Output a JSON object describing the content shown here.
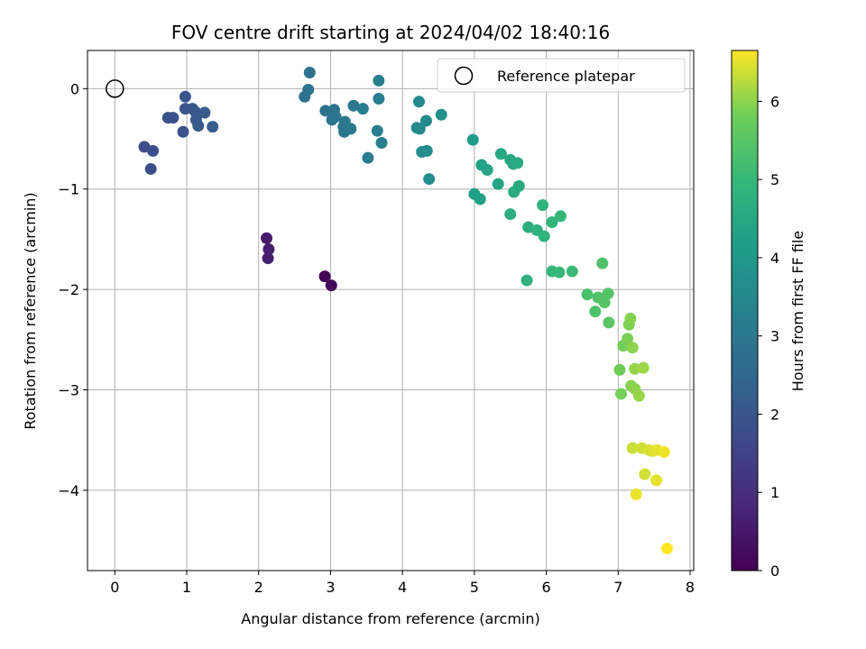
{
  "chart_data": {
    "type": "scatter",
    "title": "FOV centre drift starting at 2024/04/02 18:40:16",
    "xlabel": "Angular distance from reference (arcmin)",
    "ylabel": "Rotation from reference (arcmin)",
    "xlim": [
      -0.38,
      8.05
    ],
    "ylim": [
      -4.8,
      0.38
    ],
    "xticks": [
      0,
      1,
      2,
      3,
      4,
      5,
      6,
      7,
      8
    ],
    "yticks": [
      0,
      -1,
      -2,
      -3,
      -4
    ],
    "xtick_labels": [
      "0",
      "1",
      "2",
      "3",
      "4",
      "5",
      "6",
      "7",
      "8"
    ],
    "ytick_labels": [
      "0",
      "−1",
      "−2",
      "−3",
      "−4"
    ],
    "grid": true,
    "colormap": "viridis",
    "colorbar": {
      "label": "Hours from first FF file",
      "range": [
        0,
        6.65
      ],
      "ticks": [
        0,
        1,
        2,
        3,
        4,
        5,
        6
      ],
      "tick_labels": [
        "0",
        "1",
        "2",
        "3",
        "4",
        "5",
        "6"
      ]
    },
    "legend": {
      "position": "top-right",
      "entries": [
        "Reference platepar"
      ]
    },
    "reference_point": {
      "x": 0,
      "y": 0
    },
    "series": [
      {
        "name": "FOV centre",
        "points": [
          {
            "x": 2.92,
            "y": -1.87,
            "c": 0.1
          },
          {
            "x": 3.01,
            "y": -1.96,
            "c": 0.15
          },
          {
            "x": 2.11,
            "y": -1.49,
            "c": 0.55
          },
          {
            "x": 2.14,
            "y": -1.6,
            "c": 0.6
          },
          {
            "x": 2.13,
            "y": -1.69,
            "c": 0.65
          },
          {
            "x": 0.41,
            "y": -0.58,
            "c": 1.75
          },
          {
            "x": 0.5,
            "y": -0.8,
            "c": 1.8
          },
          {
            "x": 0.53,
            "y": -0.62,
            "c": 1.85
          },
          {
            "x": 0.74,
            "y": -0.29,
            "c": 1.9
          },
          {
            "x": 0.81,
            "y": -0.29,
            "c": 1.9
          },
          {
            "x": 0.95,
            "y": -0.43,
            "c": 1.95
          },
          {
            "x": 0.98,
            "y": -0.08,
            "c": 2.0
          },
          {
            "x": 0.98,
            "y": -0.2,
            "c": 2.0
          },
          {
            "x": 1.08,
            "y": -0.2,
            "c": 2.05
          },
          {
            "x": 1.12,
            "y": -0.23,
            "c": 2.05
          },
          {
            "x": 1.13,
            "y": -0.31,
            "c": 2.1
          },
          {
            "x": 1.16,
            "y": -0.37,
            "c": 2.1
          },
          {
            "x": 1.25,
            "y": -0.24,
            "c": 2.15
          },
          {
            "x": 1.36,
            "y": -0.38,
            "c": 2.2
          },
          {
            "x": 2.71,
            "y": 0.16,
            "c": 2.75
          },
          {
            "x": 2.69,
            "y": -0.01,
            "c": 2.8
          },
          {
            "x": 2.64,
            "y": -0.08,
            "c": 2.8
          },
          {
            "x": 2.93,
            "y": -0.22,
            "c": 2.85
          },
          {
            "x": 3.02,
            "y": -0.31,
            "c": 2.9
          },
          {
            "x": 3.05,
            "y": -0.21,
            "c": 2.9
          },
          {
            "x": 3.07,
            "y": -0.28,
            "c": 2.95
          },
          {
            "x": 3.18,
            "y": -0.38,
            "c": 2.95
          },
          {
            "x": 3.2,
            "y": -0.33,
            "c": 3.0
          },
          {
            "x": 3.19,
            "y": -0.43,
            "c": 3.0
          },
          {
            "x": 3.28,
            "y": -0.4,
            "c": 3.05
          },
          {
            "x": 3.32,
            "y": -0.17,
            "c": 3.05
          },
          {
            "x": 3.45,
            "y": -0.2,
            "c": 3.1
          },
          {
            "x": 3.52,
            "y": -0.69,
            "c": 3.1
          },
          {
            "x": 3.65,
            "y": -0.42,
            "c": 3.15
          },
          {
            "x": 3.67,
            "y": -0.1,
            "c": 3.2
          },
          {
            "x": 3.67,
            "y": 0.08,
            "c": 3.2
          },
          {
            "x": 3.71,
            "y": -0.54,
            "c": 3.25
          },
          {
            "x": 4.2,
            "y": -0.39,
            "c": 3.5
          },
          {
            "x": 4.23,
            "y": -0.13,
            "c": 3.55
          },
          {
            "x": 4.24,
            "y": -0.4,
            "c": 3.55
          },
          {
            "x": 4.27,
            "y": -0.63,
            "c": 3.6
          },
          {
            "x": 4.33,
            "y": -0.32,
            "c": 3.6
          },
          {
            "x": 4.34,
            "y": -0.62,
            "c": 3.65
          },
          {
            "x": 4.37,
            "y": -0.9,
            "c": 3.7
          },
          {
            "x": 4.54,
            "y": -0.26,
            "c": 3.75
          },
          {
            "x": 4.98,
            "y": -0.51,
            "c": 4.1
          },
          {
            "x": 5.0,
            "y": -1.05,
            "c": 4.2
          },
          {
            "x": 5.08,
            "y": -1.1,
            "c": 4.25
          },
          {
            "x": 5.1,
            "y": -0.76,
            "c": 4.3
          },
          {
            "x": 5.18,
            "y": -0.81,
            "c": 4.35
          },
          {
            "x": 5.33,
            "y": -0.95,
            "c": 4.4
          },
          {
            "x": 5.37,
            "y": -0.65,
            "c": 4.45
          },
          {
            "x": 5.5,
            "y": -0.71,
            "c": 4.5
          },
          {
            "x": 5.54,
            "y": -0.75,
            "c": 4.5
          },
          {
            "x": 5.6,
            "y": -0.74,
            "c": 4.55
          },
          {
            "x": 5.62,
            "y": -0.97,
            "c": 4.55
          },
          {
            "x": 5.55,
            "y": -1.03,
            "c": 4.6
          },
          {
            "x": 5.5,
            "y": -1.25,
            "c": 4.65
          },
          {
            "x": 5.75,
            "y": -1.38,
            "c": 4.7
          },
          {
            "x": 5.73,
            "y": -1.91,
            "c": 4.75
          },
          {
            "x": 5.87,
            "y": -1.41,
            "c": 4.8
          },
          {
            "x": 5.95,
            "y": -1.16,
            "c": 4.85
          },
          {
            "x": 5.97,
            "y": -1.47,
            "c": 4.85
          },
          {
            "x": 6.08,
            "y": -1.33,
            "c": 4.9
          },
          {
            "x": 6.08,
            "y": -1.82,
            "c": 4.95
          },
          {
            "x": 6.18,
            "y": -1.83,
            "c": 5.0
          },
          {
            "x": 6.2,
            "y": -1.27,
            "c": 5.0
          },
          {
            "x": 6.36,
            "y": -1.82,
            "c": 5.05
          },
          {
            "x": 6.57,
            "y": -2.05,
            "c": 5.3
          },
          {
            "x": 6.68,
            "y": -2.22,
            "c": 5.35
          },
          {
            "x": 6.72,
            "y": -2.08,
            "c": 5.4
          },
          {
            "x": 6.78,
            "y": -1.74,
            "c": 5.4
          },
          {
            "x": 6.81,
            "y": -2.13,
            "c": 5.45
          },
          {
            "x": 6.86,
            "y": -2.04,
            "c": 5.45
          },
          {
            "x": 6.87,
            "y": -2.33,
            "c": 5.5
          },
          {
            "x": 7.02,
            "y": -2.8,
            "c": 5.8
          },
          {
            "x": 7.04,
            "y": -3.04,
            "c": 5.85
          },
          {
            "x": 7.07,
            "y": -2.56,
            "c": 5.85
          },
          {
            "x": 7.13,
            "y": -2.49,
            "c": 5.9
          },
          {
            "x": 7.15,
            "y": -2.35,
            "c": 5.9
          },
          {
            "x": 7.17,
            "y": -2.29,
            "c": 5.95
          },
          {
            "x": 7.18,
            "y": -2.96,
            "c": 5.95
          },
          {
            "x": 7.2,
            "y": -2.58,
            "c": 6.0
          },
          {
            "x": 7.23,
            "y": -2.99,
            "c": 6.0
          },
          {
            "x": 7.23,
            "y": -2.79,
            "c": 6.05
          },
          {
            "x": 7.29,
            "y": -3.06,
            "c": 6.05
          },
          {
            "x": 7.35,
            "y": -2.78,
            "c": 6.1
          },
          {
            "x": 7.2,
            "y": -3.58,
            "c": 6.35
          },
          {
            "x": 7.33,
            "y": -3.58,
            "c": 6.4
          },
          {
            "x": 7.37,
            "y": -3.84,
            "c": 6.4
          },
          {
            "x": 7.43,
            "y": -3.6,
            "c": 6.45
          },
          {
            "x": 7.48,
            "y": -3.61,
            "c": 6.45
          },
          {
            "x": 7.53,
            "y": -3.9,
            "c": 6.5
          },
          {
            "x": 7.54,
            "y": -3.6,
            "c": 6.5
          },
          {
            "x": 7.64,
            "y": -3.62,
            "c": 6.55
          },
          {
            "x": 7.25,
            "y": -4.04,
            "c": 6.55
          },
          {
            "x": 7.68,
            "y": -4.58,
            "c": 6.65
          }
        ]
      }
    ]
  }
}
